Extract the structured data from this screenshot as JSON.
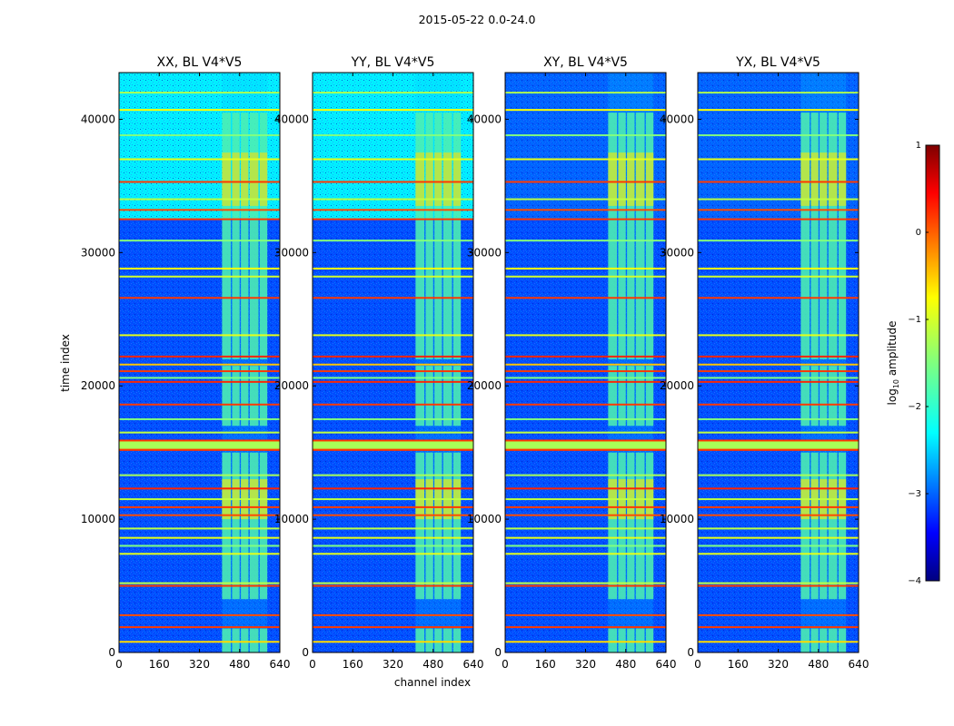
{
  "figure_title": "2015-05-22 0.0-24.0",
  "chart_data": {
    "type": "heatmap",
    "title": "2015-05-22 0.0-24.0",
    "xlabel": "channel index",
    "ylabel": "time index",
    "xlim": [
      0,
      640
    ],
    "ylim": [
      0,
      43500
    ],
    "xticks": [
      0,
      160,
      320,
      480,
      640
    ],
    "yticks": [
      0,
      10000,
      20000,
      30000,
      40000
    ],
    "colormap": "jet",
    "colorbar": {
      "label": "log10 amplitude",
      "label_main": "log",
      "label_sub": "10",
      "label_rest": " amplitude",
      "range": [
        -4,
        1
      ],
      "ticks": [
        -4,
        -3,
        -2,
        -1,
        0,
        1
      ],
      "tick_labels": [
        "−4",
        "−3",
        "−2",
        "−1",
        "0",
        "1"
      ]
    },
    "panels": [
      {
        "title": "XX, BL V4*V5",
        "polarization": "XX",
        "baseline": "V4*V5"
      },
      {
        "title": "YY, BL V4*V5",
        "polarization": "YY",
        "baseline": "V4*V5"
      },
      {
        "title": "XY, BL V4*V5",
        "polarization": "XY",
        "baseline": "V4*V5"
      },
      {
        "title": "YX, BL V4*V5",
        "polarization": "YX",
        "baseline": "V4*V5"
      }
    ],
    "background_levels": [
      {
        "from": 0,
        "to": 32500,
        "value_co": -3.0,
        "value_cross": -3.0
      },
      {
        "from": 32500,
        "to": 43500,
        "value_co": -2.2,
        "value_cross": -2.9
      }
    ],
    "rfi_channel_band": {
      "from_channel": 410,
      "to_channel": 590,
      "columns": [
        [
          410,
          445
        ],
        [
          450,
          480
        ],
        [
          485,
          515
        ],
        [
          520,
          555
        ],
        [
          560,
          590
        ]
      ],
      "active_times": [
        [
          0,
          1800
        ],
        [
          4000,
          15000
        ],
        [
          17000,
          21500
        ],
        [
          22000,
          40500
        ]
      ],
      "strong_times": [
        [
          10000,
          13000
        ],
        [
          33500,
          37500
        ]
      ]
    },
    "horizontal_flag_lines": [
      {
        "time": 800,
        "value": -0.7
      },
      {
        "time": 1900,
        "value": 0.1
      },
      {
        "time": 2800,
        "value": 0.0
      },
      {
        "time": 5000,
        "value": 0.1
      },
      {
        "time": 5200,
        "value": -1.2
      },
      {
        "time": 7400,
        "value": -1.0
      },
      {
        "time": 8000,
        "value": -1.5
      },
      {
        "time": 8600,
        "value": -1.0
      },
      {
        "time": 9300,
        "value": -1.2
      },
      {
        "time": 10300,
        "value": 0.0
      },
      {
        "time": 10900,
        "value": 0.1
      },
      {
        "time": 11500,
        "value": -1.2
      },
      {
        "time": 12300,
        "value": 0.2
      },
      {
        "time": 13300,
        "value": -1.3
      },
      {
        "time": 15200,
        "value": 0.1
      },
      {
        "time": 15700,
        "value": -1.3
      },
      {
        "time": 16500,
        "value": -1.2
      },
      {
        "time": 17500,
        "value": -1.5
      },
      {
        "time": 18600,
        "value": 0.1
      },
      {
        "time": 20300,
        "value": 0.2
      },
      {
        "time": 20600,
        "value": -1.5
      },
      {
        "time": 21100,
        "value": 0.1
      },
      {
        "time": 21600,
        "value": -0.6
      },
      {
        "time": 22200,
        "value": 0.2
      },
      {
        "time": 23800,
        "value": -1.0
      },
      {
        "time": 26600,
        "value": 0.1
      },
      {
        "time": 28200,
        "value": -1.1
      },
      {
        "time": 28800,
        "value": -0.9
      },
      {
        "time": 30900,
        "value": -1.5
      },
      {
        "time": 32500,
        "value": 0.1
      },
      {
        "time": 33200,
        "value": 0.0
      },
      {
        "time": 34000,
        "value": -1.2
      },
      {
        "time": 35300,
        "value": 0.1
      },
      {
        "time": 37000,
        "value": -1.0
      },
      {
        "time": 38800,
        "value": -1.5
      },
      {
        "time": 40700,
        "value": -0.9
      },
      {
        "time": 42000,
        "value": -1.3
      }
    ],
    "broad_flag_band": {
      "from": 15200,
      "to": 15900,
      "value": -1.3
    }
  }
}
